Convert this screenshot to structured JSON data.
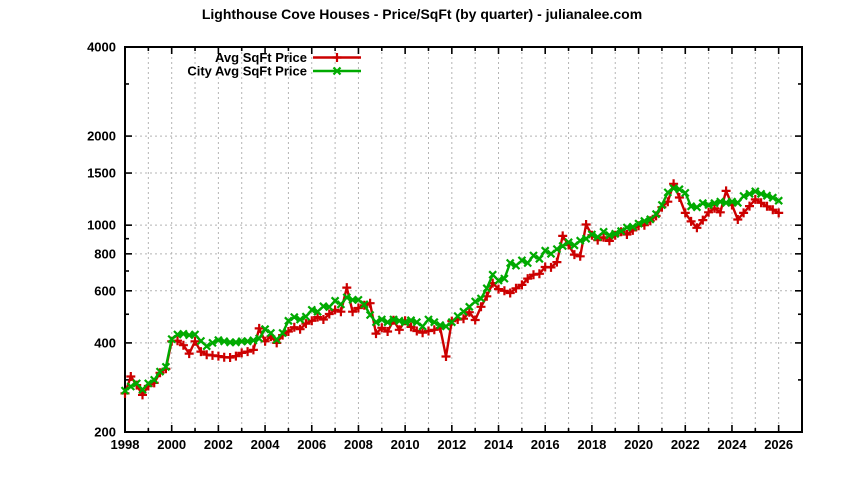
{
  "page": {
    "background": "#ffffff"
  },
  "chart_data": {
    "type": "line",
    "title": "Lighthouse Cove Houses - Price/SqFt (by quarter) - julianalee.com",
    "xlabel": "",
    "ylabel": "",
    "x_axis": {
      "min": 1998,
      "max": 2027,
      "tick_interval_years": 1,
      "label_years": [
        1998,
        2000,
        2002,
        2004,
        2006,
        2008,
        2010,
        2012,
        2014,
        2016,
        2018,
        2020,
        2022,
        2024,
        2026
      ]
    },
    "y_axis": {
      "scale": "log",
      "min": 200,
      "max": 4000,
      "labeled_ticks": [
        200,
        400,
        600,
        800,
        1000,
        1500,
        2000,
        4000
      ],
      "minor_ticks": [
        300,
        500,
        700,
        900,
        3000
      ]
    },
    "grid": {
      "on": true,
      "color": "#b4b4b4",
      "style": "dashed"
    },
    "legend": {
      "position": "top-inside",
      "entries": [
        "Avg SqFt Price",
        "City Avg SqFt Price"
      ]
    },
    "x_start": 1998.0,
    "x_step": 0.25,
    "series": [
      {
        "name": "Avg SqFt Price",
        "color": "#cc0000",
        "marker": "plus",
        "values": [
          270,
          308,
          288,
          267,
          286,
          293,
          317,
          327,
          405,
          407,
          393,
          368,
          405,
          374,
          365,
          363,
          361,
          358,
          357,
          361,
          370,
          374,
          379,
          448,
          405,
          420,
          400,
          425,
          437,
          452,
          445,
          465,
          475,
          489,
          480,
          501,
          517,
          510,
          615,
          510,
          525,
          536,
          545,
          430,
          450,
          437,
          477,
          443,
          475,
          453,
          439,
          433,
          439,
          443,
          449,
          360,
          474,
          480,
          483,
          508,
          478,
          530,
          575,
          637,
          608,
          600,
          590,
          612,
          628,
          660,
          680,
          685,
          722,
          720,
          750,
          920,
          857,
          795,
          785,
          1005,
          925,
          890,
          910,
          885,
          925,
          950,
          930,
          960,
          995,
          1000,
          1035,
          1075,
          1150,
          1200,
          1380,
          1240,
          1100,
          1030,
          980,
          1040,
          1105,
          1140,
          1105,
          1305,
          1170,
          1045,
          1100,
          1160,
          1222,
          1190,
          1158,
          1128,
          1100
        ]
      },
      {
        "name": "City Avg SqFt Price",
        "color": "#00aa00",
        "marker": "cross",
        "values": [
          276,
          285,
          292,
          278,
          292,
          300,
          320,
          332,
          412,
          427,
          429,
          425,
          427,
          406,
          390,
          400,
          409,
          405,
          402,
          402,
          405,
          405,
          408,
          414,
          445,
          432,
          410,
          432,
          475,
          489,
          480,
          491,
          517,
          510,
          532,
          529,
          555,
          540,
          570,
          559,
          559,
          540,
          497,
          470,
          480,
          470,
          480,
          475,
          470,
          477,
          470,
          455,
          480,
          470,
          459,
          455,
          470,
          493,
          510,
          530,
          552,
          565,
          612,
          680,
          650,
          660,
          745,
          730,
          760,
          745,
          790,
          770,
          820,
          800,
          830,
          850,
          875,
          855,
          886,
          900,
          930,
          912,
          950,
          925,
          935,
          955,
          982,
          987,
          1012,
          1033,
          1047,
          1090,
          1170,
          1290,
          1332,
          1322,
          1285,
          1158,
          1150,
          1186,
          1170,
          1186,
          1200,
          1190,
          1200,
          1190,
          1255,
          1275,
          1300,
          1275,
          1258,
          1238,
          1210
        ]
      }
    ]
  }
}
